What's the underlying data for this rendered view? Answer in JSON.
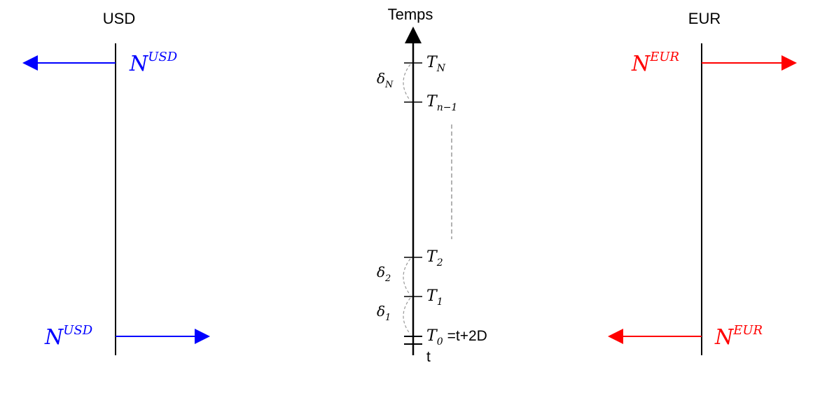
{
  "colors": {
    "usd": "#0000ff",
    "eur": "#ff0000",
    "axis": "#000000",
    "dashed": "#999999"
  },
  "usd": {
    "heading": "USD",
    "top_label": {
      "base": "N",
      "sup": "USD"
    },
    "bottom_label": {
      "base": "N",
      "sup": "USD"
    }
  },
  "eur": {
    "heading": "EUR",
    "top_label": {
      "base": "N",
      "sup": "EUR"
    },
    "bottom_label": {
      "base": "N",
      "sup": "EUR"
    }
  },
  "time": {
    "heading": "Temps",
    "tN": {
      "base": "T",
      "sub": "N"
    },
    "tn1": {
      "base": "T",
      "sub": "n−1"
    },
    "t2": {
      "base": "T",
      "sub": "2"
    },
    "t1": {
      "base": "T",
      "sub": "1"
    },
    "t0": {
      "base": "T",
      "sub": "0",
      "suffix": "=t+2D"
    },
    "t": "t",
    "deltaN": {
      "base": "δ",
      "sub": "N"
    },
    "delta2": {
      "base": "δ",
      "sub": "2"
    },
    "delta1": {
      "base": "δ",
      "sub": "1"
    }
  }
}
